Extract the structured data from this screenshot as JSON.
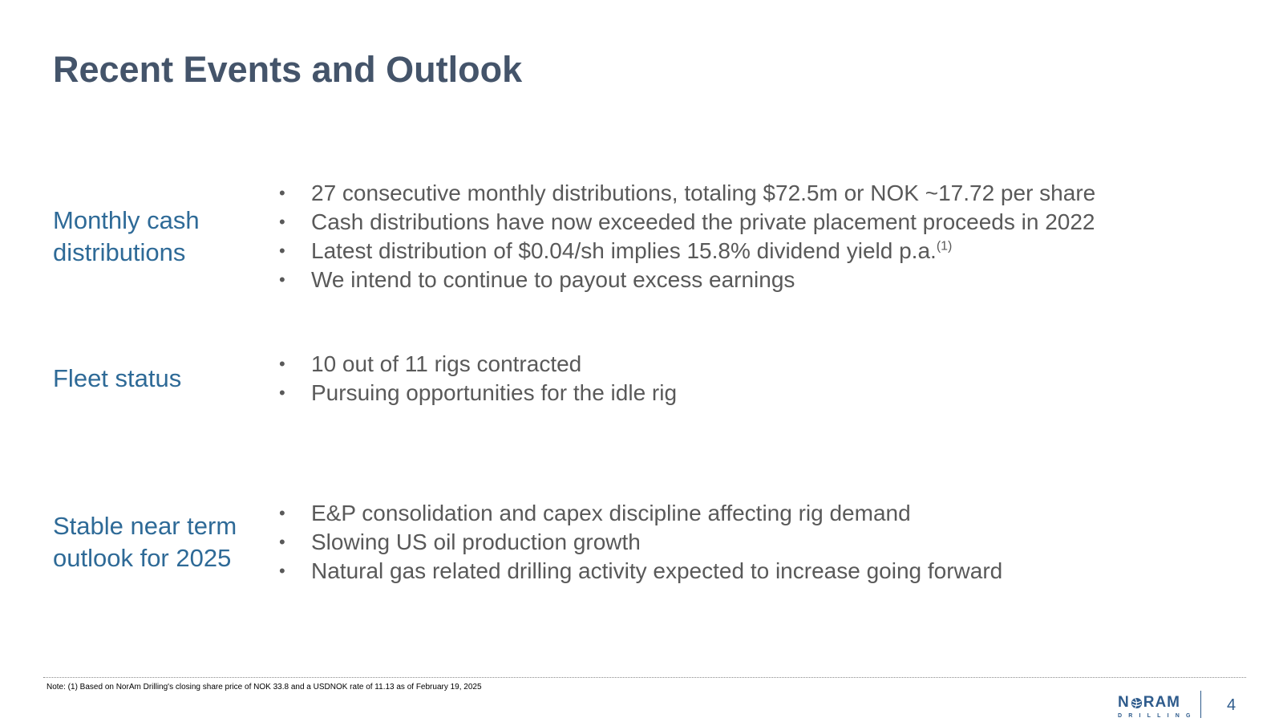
{
  "slide": {
    "title": "Recent Events and Outlook"
  },
  "sections": [
    {
      "label": "Monthly cash distributions",
      "bullets": [
        "27 consecutive monthly distributions, totaling $72.5m or NOK ~17.72 per share",
        "Cash distributions have now exceeded the private placement proceeds in 2022",
        "Latest distribution of $0.04/sh implies 15.8% dividend yield p.a.",
        "We intend to continue to payout excess earnings"
      ],
      "footnote_ref": "(1)"
    },
    {
      "label": "Fleet status",
      "bullets": [
        "10 out of 11 rigs contracted",
        "Pursuing opportunities for the idle rig"
      ]
    },
    {
      "label": "Stable near term outlook for 2025",
      "bullets": [
        "E&P consolidation and capex discipline affecting rig demand",
        "Slowing US oil production growth",
        "Natural gas related drilling activity expected to increase going forward"
      ]
    }
  ],
  "bullet_symbol": "•",
  "footer": {
    "note": "Note: (1) Based on NorAm Drilling's closing share price of NOK 33.8 and a USDNOK rate of 11.13 as of February 19, 2025",
    "logo_word_left": "N",
    "logo_word_right": "RAM",
    "logo_sub": "DRILLING",
    "page_number": "4"
  },
  "colors": {
    "title": "#44546a",
    "section_label": "#2e6a97",
    "bullet_text": "#595959",
    "brand": "#2e5b8c"
  },
  "icons": {
    "logo_globe": "globe-icon"
  }
}
